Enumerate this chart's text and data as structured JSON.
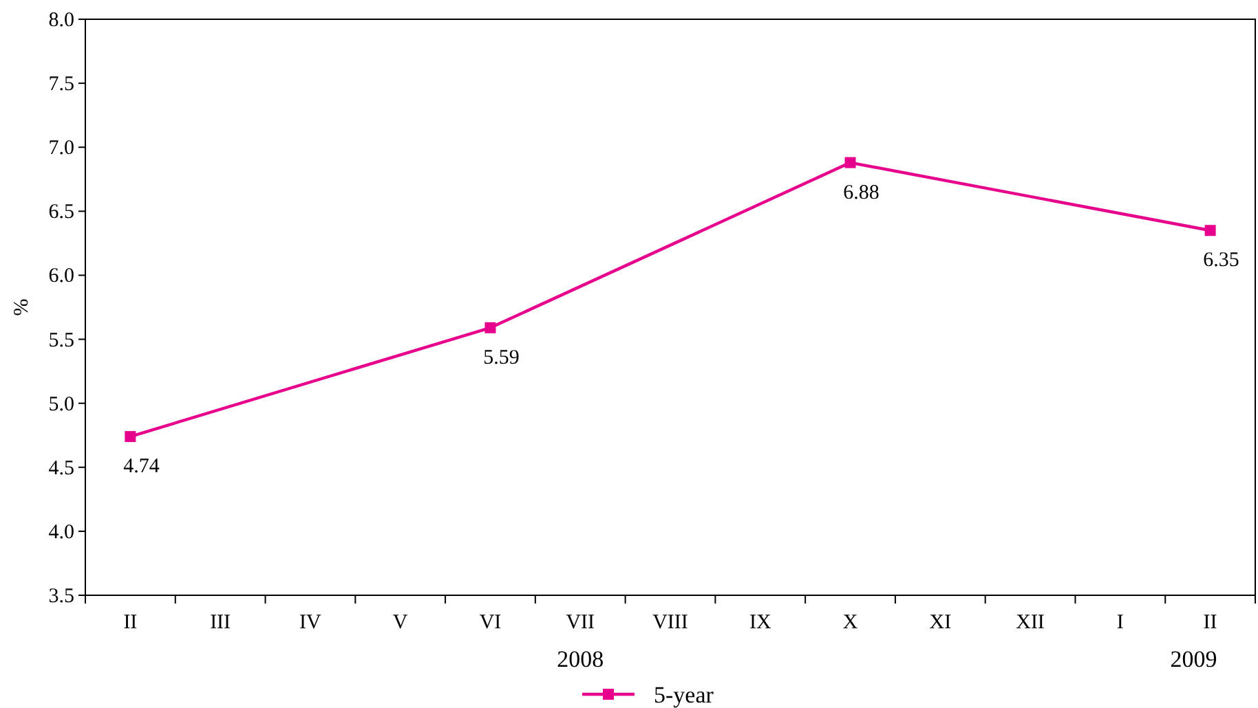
{
  "chart_data": {
    "type": "line",
    "ylabel": "%",
    "categories": [
      "II",
      "III",
      "IV",
      "V",
      "VI",
      "VII",
      "VIII",
      "IX",
      "X",
      "XI",
      "XII",
      "I",
      "II"
    ],
    "series": [
      {
        "name": "5-year",
        "color": "#e6008c",
        "values": [
          4.74,
          null,
          null,
          null,
          5.59,
          null,
          null,
          null,
          6.88,
          null,
          null,
          null,
          6.35
        ]
      }
    ],
    "ylim": [
      3.5,
      8
    ],
    "yticks": [
      3.5,
      {
        "value": 4,
        "label": "4.0"
      },
      4.5,
      {
        "value": 5,
        "label": "5.0"
      },
      5.5,
      {
        "value": 6,
        "label": "6.0"
      },
      6.5,
      {
        "value": 7,
        "label": "7.0"
      },
      7.5,
      {
        "value": 8,
        "label": "8.0"
      }
    ],
    "annotations": [
      "2008",
      "2009"
    ],
    "data_labels": true,
    "legend": "bottom",
    "marker": "square",
    "grid": false
  }
}
